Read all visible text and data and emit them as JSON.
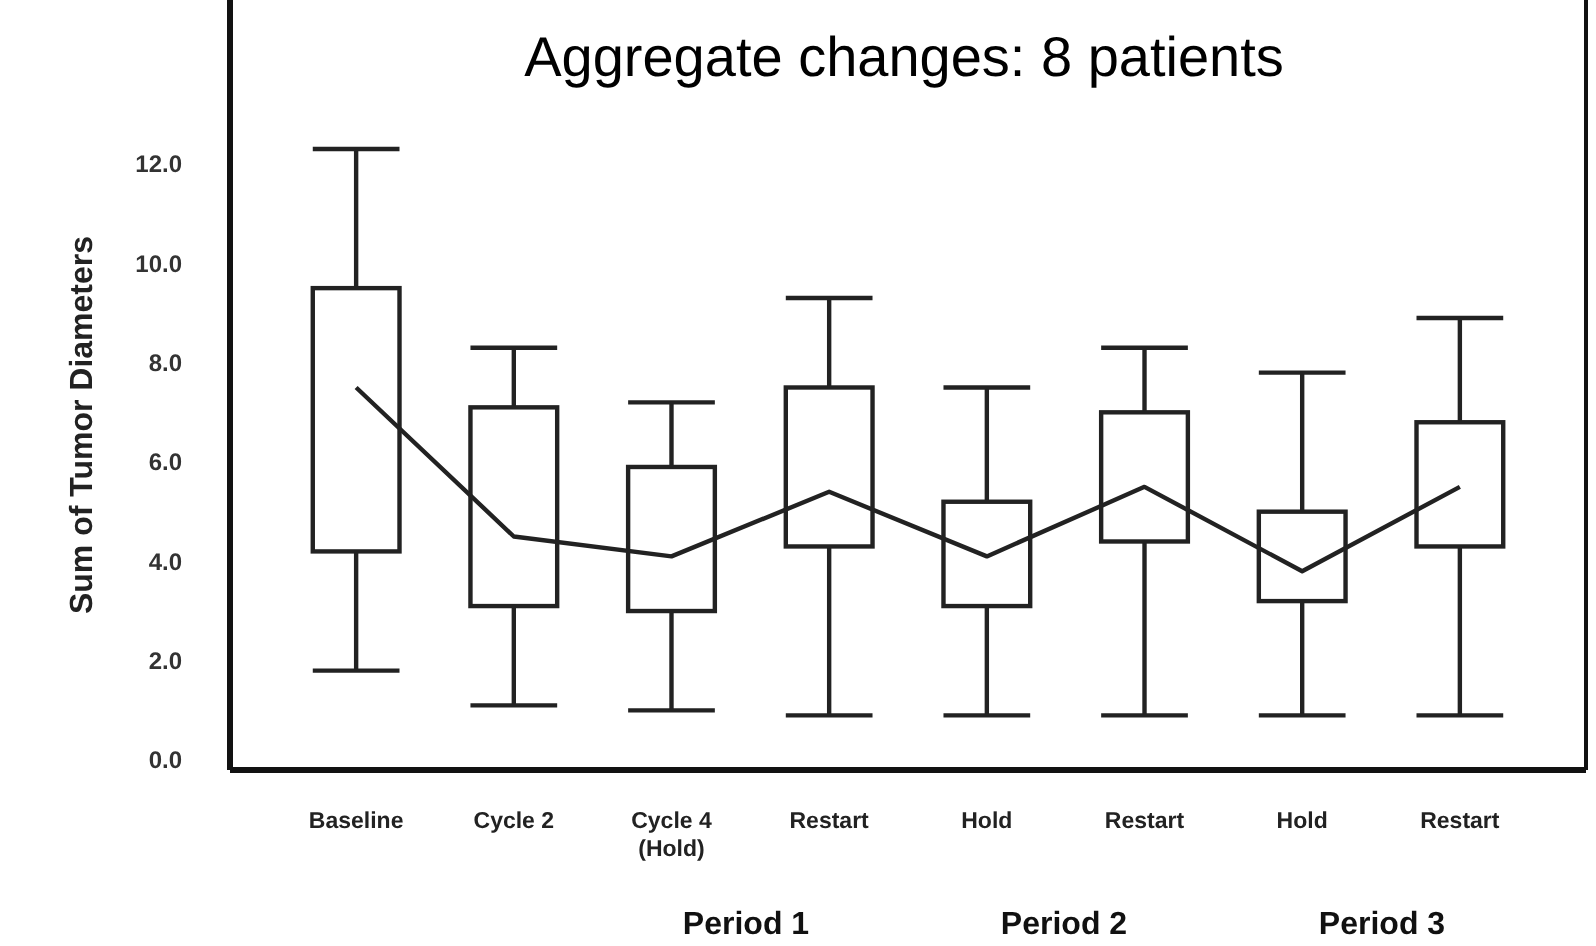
{
  "chart_data": {
    "type": "box",
    "title": "Aggregate changes: 8 patients",
    "ylabel": "Sum of Tumor Diameters",
    "categories": [
      "Baseline",
      "Cycle 2",
      "Cycle 4 (Hold)",
      "Restart",
      "Hold",
      "Restart",
      "Hold",
      "Restart"
    ],
    "boxes": [
      {
        "low": 1.8,
        "q1": 4.2,
        "q3": 9.5,
        "high": 12.3
      },
      {
        "low": 1.1,
        "q1": 3.1,
        "q3": 7.1,
        "high": 8.3
      },
      {
        "low": 1.0,
        "q1": 3.0,
        "q3": 5.9,
        "high": 7.2
      },
      {
        "low": 0.9,
        "q1": 4.3,
        "q3": 7.5,
        "high": 9.3
      },
      {
        "low": 0.9,
        "q1": 3.1,
        "q3": 5.2,
        "high": 7.5
      },
      {
        "low": 0.9,
        "q1": 4.4,
        "q3": 7.0,
        "high": 8.3
      },
      {
        "low": 0.9,
        "q1": 3.2,
        "q3": 5.0,
        "high": 7.8
      },
      {
        "low": 0.9,
        "q1": 4.3,
        "q3": 6.8,
        "high": 8.9
      }
    ],
    "color": "#222222",
    "series": [
      {
        "type": "line",
        "color": "#222222",
        "values": [
          7.5,
          4.5,
          4.1,
          5.4,
          4.1,
          5.5,
          3.8,
          5.5
        ]
      }
    ],
    "ylim": [
      -0.2,
      15.3
    ],
    "yticks": [
      {
        "value": 0,
        "label": "0.0"
      },
      {
        "value": 2,
        "label": "2.0"
      },
      {
        "value": 4,
        "label": "4.0"
      },
      {
        "value": 6,
        "label": "6.0"
      },
      {
        "value": 8,
        "label": "8.0"
      },
      {
        "value": 10,
        "label": "10.0"
      },
      {
        "value": 12,
        "label": "12.0"
      }
    ],
    "annotations": [
      "Period 1",
      "Period 2",
      "Period 3"
    ]
  }
}
